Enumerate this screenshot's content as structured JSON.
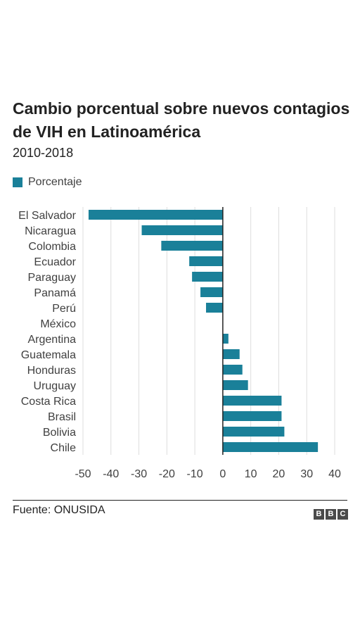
{
  "title": "Cambio porcentual sobre nuevos contagios de VIH en Latinoamérica",
  "subtitle": "2010-2018",
  "source": "Fuente: ONUSIDA",
  "logo": [
    "B",
    "B",
    "C"
  ],
  "colors": {
    "bar": "#1a8099",
    "grid": "#dddddd",
    "axis": "#222222"
  },
  "chart_data": {
    "type": "bar",
    "orientation": "horizontal",
    "categories": [
      "El Salvador",
      "Nicaragua",
      "Colombia",
      "Ecuador",
      "Paraguay",
      "Panamá",
      "Perú",
      "México",
      "Argentina",
      "Guatemala",
      "Honduras",
      "Uruguay",
      "Costa Rica",
      "Brasil",
      "Bolivia",
      "Chile"
    ],
    "series": [
      {
        "name": "Porcentaje",
        "values": [
          -48,
          -29,
          -22,
          -12,
          -11,
          -8,
          -6,
          0,
          2,
          6,
          7,
          9,
          21,
          21,
          22,
          34
        ]
      }
    ],
    "xlim": [
      -50,
      40
    ],
    "xticks": [
      -50,
      -40,
      -30,
      -20,
      -10,
      0,
      10,
      20,
      30,
      40
    ],
    "grid": true,
    "legend": "top-left"
  }
}
